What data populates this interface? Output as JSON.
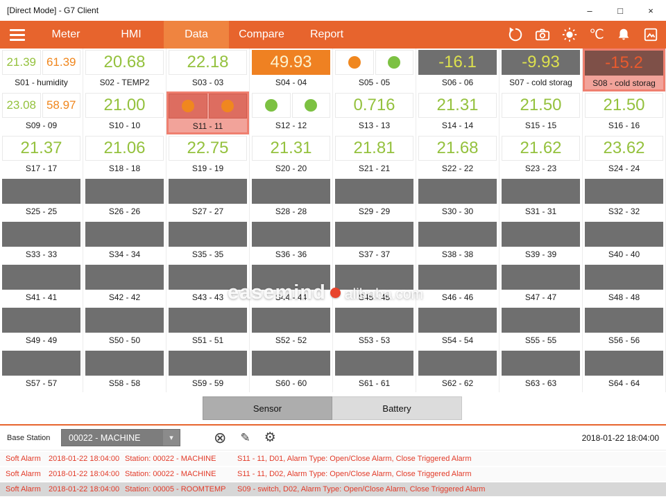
{
  "window": {
    "title": "[Direct Mode] - G7 Client",
    "controls": {
      "minimize": "–",
      "maximize": "□",
      "close": "×"
    }
  },
  "nav": {
    "tabs": [
      {
        "label": "Meter"
      },
      {
        "label": "HMI"
      },
      {
        "label": "Data"
      },
      {
        "label": "Compare"
      },
      {
        "label": "Report"
      }
    ],
    "celsius": "℃"
  },
  "grid": {
    "tiles": [
      {
        "label": "S01 - humidity",
        "kind": "dual",
        "values": [
          {
            "text": "21.39",
            "color": "green"
          },
          {
            "text": "61.39",
            "color": "orange"
          }
        ]
      },
      {
        "label": "S02 - TEMP2",
        "kind": "single",
        "style": "white-green",
        "text": "20.68"
      },
      {
        "label": "S03 - 03",
        "kind": "single",
        "style": "white-green",
        "text": "22.18"
      },
      {
        "label": "S04 - 04",
        "kind": "single",
        "style": "orange-bg",
        "text": "49.93"
      },
      {
        "label": "S05 - 05",
        "kind": "dots",
        "dots": [
          "orange",
          "green"
        ]
      },
      {
        "label": "S06 - 06",
        "kind": "single",
        "style": "dark-yellow",
        "text": "-16.1"
      },
      {
        "label": "S07 - cold storag",
        "kind": "single",
        "style": "dark-yellow",
        "text": "-9.93"
      },
      {
        "label": "S08 - cold storag",
        "kind": "single",
        "style": "dark-alarm",
        "text": "-15.2",
        "alarm": true
      },
      {
        "label": "S09 - 09",
        "kind": "dual",
        "values": [
          {
            "text": "23.08",
            "color": "green"
          },
          {
            "text": "58.97",
            "color": "orange"
          }
        ]
      },
      {
        "label": "S10 - 10",
        "kind": "single",
        "style": "white-green",
        "text": "21.00"
      },
      {
        "label": "S11 - 11",
        "kind": "dots",
        "dots": [
          "orange",
          "orange"
        ],
        "alarm": true
      },
      {
        "label": "S12 - 12",
        "kind": "dots",
        "dots": [
          "green",
          "green"
        ]
      },
      {
        "label": "S13 - 13",
        "kind": "single",
        "style": "white-green",
        "text": "0.716"
      },
      {
        "label": "S14 - 14",
        "kind": "single",
        "style": "white-green",
        "text": "21.31"
      },
      {
        "label": "S15 - 15",
        "kind": "single",
        "style": "white-green",
        "text": "21.50"
      },
      {
        "label": "S16 - 16",
        "kind": "single",
        "style": "white-green",
        "text": "21.50"
      },
      {
        "label": "S17 - 17",
        "kind": "single",
        "style": "white-green",
        "text": "21.37"
      },
      {
        "label": "S18 - 18",
        "kind": "single",
        "style": "white-green",
        "text": "21.06"
      },
      {
        "label": "S19 - 19",
        "kind": "single",
        "style": "white-green",
        "text": "22.75"
      },
      {
        "label": "S20 - 20",
        "kind": "single",
        "style": "white-green",
        "text": "21.31"
      },
      {
        "label": "S21 - 21",
        "kind": "single",
        "style": "white-green",
        "text": "21.81"
      },
      {
        "label": "S22 - 22",
        "kind": "single",
        "style": "white-green",
        "text": "21.68"
      },
      {
        "label": "S23 - 23",
        "kind": "single",
        "style": "white-green",
        "text": "21.62"
      },
      {
        "label": "S24 - 24",
        "kind": "single",
        "style": "white-green",
        "text": "23.62"
      },
      {
        "label": "S25 - 25",
        "kind": "empty"
      },
      {
        "label": "S26 - 26",
        "kind": "empty"
      },
      {
        "label": "S27 - 27",
        "kind": "empty"
      },
      {
        "label": "S28 - 28",
        "kind": "empty"
      },
      {
        "label": "S29 - 29",
        "kind": "empty"
      },
      {
        "label": "S30 - 30",
        "kind": "empty"
      },
      {
        "label": "S31 - 31",
        "kind": "empty"
      },
      {
        "label": "S32 - 32",
        "kind": "empty"
      },
      {
        "label": "S33 - 33",
        "kind": "empty"
      },
      {
        "label": "S34 - 34",
        "kind": "empty"
      },
      {
        "label": "S35 - 35",
        "kind": "empty"
      },
      {
        "label": "S36 - 36",
        "kind": "empty"
      },
      {
        "label": "S37 - 37",
        "kind": "empty"
      },
      {
        "label": "S38 - 38",
        "kind": "empty"
      },
      {
        "label": "S39 - 39",
        "kind": "empty"
      },
      {
        "label": "S40 - 40",
        "kind": "empty"
      },
      {
        "label": "S41 - 41",
        "kind": "empty"
      },
      {
        "label": "S42 - 42",
        "kind": "empty"
      },
      {
        "label": "S43 - 43",
        "kind": "empty"
      },
      {
        "label": "S44 - 44",
        "kind": "empty"
      },
      {
        "label": "S45 - 45",
        "kind": "empty"
      },
      {
        "label": "S46 - 46",
        "kind": "empty"
      },
      {
        "label": "S47 - 47",
        "kind": "empty"
      },
      {
        "label": "S48 - 48",
        "kind": "empty"
      },
      {
        "label": "S49 - 49",
        "kind": "empty"
      },
      {
        "label": "S50 - 50",
        "kind": "empty"
      },
      {
        "label": "S51 - 51",
        "kind": "empty"
      },
      {
        "label": "S52 - 52",
        "kind": "empty"
      },
      {
        "label": "S53 - 53",
        "kind": "empty"
      },
      {
        "label": "S54 - 54",
        "kind": "empty"
      },
      {
        "label": "S55 - 55",
        "kind": "empty"
      },
      {
        "label": "S56 - 56",
        "kind": "empty"
      },
      {
        "label": "S57 - 57",
        "kind": "empty"
      },
      {
        "label": "S58 - 58",
        "kind": "empty"
      },
      {
        "label": "S59 - 59",
        "kind": "empty"
      },
      {
        "label": "S60 - 60",
        "kind": "empty"
      },
      {
        "label": "S61 - 61",
        "kind": "empty"
      },
      {
        "label": "S62 - 62",
        "kind": "empty"
      },
      {
        "label": "S63 - 63",
        "kind": "empty"
      },
      {
        "label": "S64 - 64",
        "kind": "empty"
      }
    ]
  },
  "watermark": {
    "line1": "easemind",
    "line2": "alibaba.com"
  },
  "footer_tabs": {
    "sensor": "Sensor",
    "battery": "Battery"
  },
  "base_station": {
    "label": "Base Station",
    "value": "00022 - MACHINE",
    "timestamp": "2018-01-22 18:04:00"
  },
  "alarms": [
    {
      "type": "Soft Alarm",
      "time": "2018-01-22 18:04:00",
      "station": "Station: 00022 - MACHINE",
      "detail": "S11 - 11, D01, Alarm Type: Open/Close Alarm, Close Triggered Alarm"
    },
    {
      "type": "Soft Alarm",
      "time": "2018-01-22 18:04:00",
      "station": "Station: 00022 - MACHINE",
      "detail": "S11 - 11, D02, Alarm Type: Open/Close Alarm, Close Triggered Alarm"
    },
    {
      "type": "Soft Alarm",
      "time": "2018-01-22 18:04:00",
      "station": "Station: 00005 - ROOMTEMP",
      "detail": "S09 - switch, D02, Alarm Type: Open/Close Alarm, Close Triggered Alarm"
    }
  ]
}
